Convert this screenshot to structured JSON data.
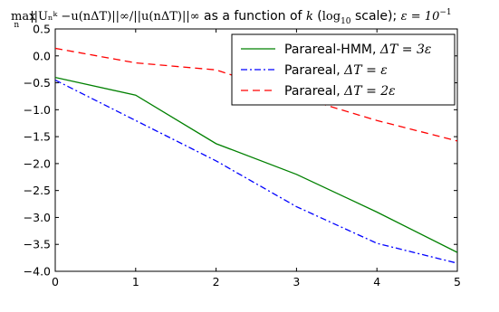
{
  "chart_data": {
    "type": "line",
    "title": {
      "prefix": "max",
      "prefix_sub": "n",
      "formula": "||Uₙᵏ −u(nΔT)||∞/||u(nΔT)||∞",
      "text": " as a function of ",
      "k": "k",
      "scale_open": " (",
      "log": "log",
      "log_sub": "10",
      "scale_close": " scale); ",
      "eps": "ε = 10",
      "eps_sup": "−1"
    },
    "xlabel": "",
    "ylabel": "",
    "xlim": [
      0,
      5
    ],
    "ylim": [
      -4.0,
      0.5
    ],
    "xticks": [
      "0",
      "1",
      "2",
      "3",
      "4",
      "5"
    ],
    "yticks": [
      "0.5",
      "0.0",
      "−0.5",
      "−1.0",
      "−1.5",
      "−2.0",
      "−2.5",
      "−3.0",
      "−3.5",
      "−4.0"
    ],
    "x": [
      0,
      1,
      2,
      3,
      4,
      5
    ],
    "legend_position": "upper-right",
    "series": [
      {
        "name": "Parareal-HMM, ",
        "name_math": "ΔT = 3ε",
        "color": "#008000",
        "style": "solid",
        "values": [
          -0.4,
          -0.73,
          -1.63,
          -2.2,
          -2.9,
          -3.65
        ]
      },
      {
        "name": "Parareal, ",
        "name_math": "ΔT = ε",
        "color": "#0000ff",
        "style": "dashdot",
        "values": [
          -0.45,
          -1.2,
          -1.95,
          -2.8,
          -3.48,
          -3.85
        ]
      },
      {
        "name": "Parareal, ",
        "name_math": "ΔT = 2ε",
        "color": "#ff0000",
        "style": "dashed",
        "values": [
          0.14,
          -0.13,
          -0.26,
          -0.75,
          -1.2,
          -1.58
        ]
      }
    ]
  }
}
